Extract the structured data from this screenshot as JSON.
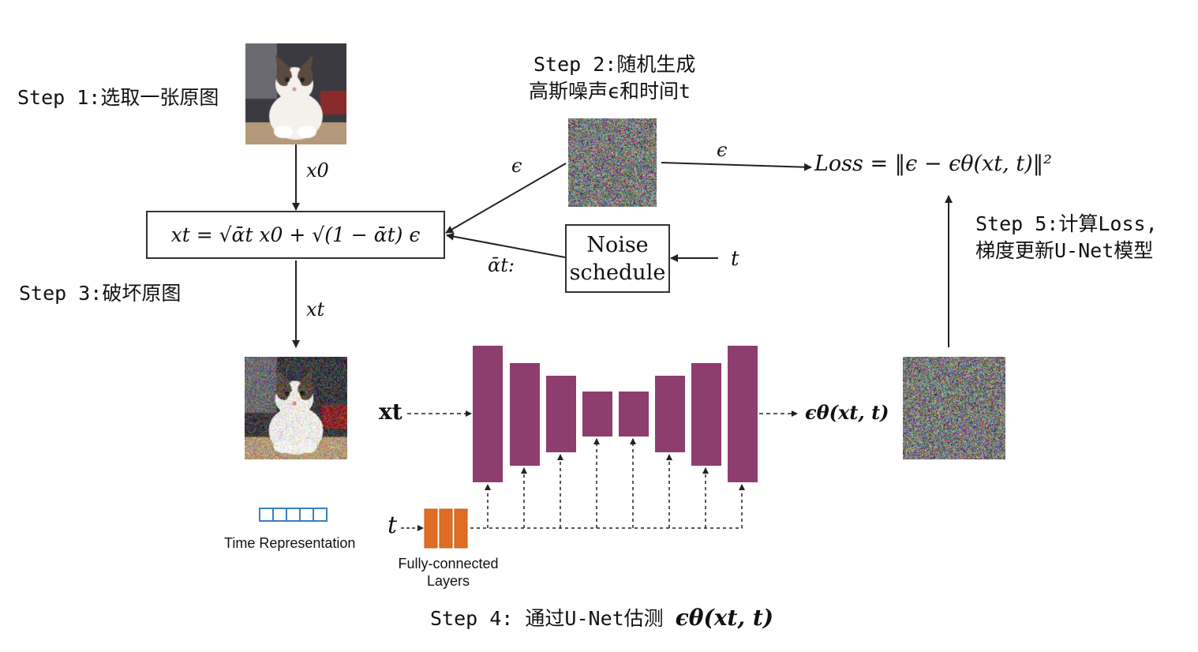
{
  "steps": {
    "step1": "Step 1:选取一张原图",
    "step2_line1": "Step 2:随机生成",
    "step2_line2": "高斯噪声ϵ和时间t",
    "step3": "Step 3:破坏原图",
    "step4_prefix": "Step 4: 通过U-Net估测 ",
    "step4_math": "ϵθ(xt, t)",
    "step5_line1": "Step 5:计算Loss,",
    "step5_line2": "梯度更新U-Net模型"
  },
  "labels": {
    "x0": "x0",
    "xt_arrow": "xt",
    "epsilon_left": "ϵ",
    "epsilon_top": "ϵ",
    "alpha_bar": "ᾱt:",
    "t_input": "t",
    "t_unet": "t",
    "xt_unet": "xt",
    "eps_theta_out": "ϵθ(xt, t)",
    "time_representation": "Time Representation",
    "fc_line1": "Fully-connected",
    "fc_line2": "Layers"
  },
  "formula": {
    "forward": "xt = √ᾱt x0 + √(1 − ᾱt) ϵ",
    "loss": "Loss = ‖ϵ − ϵθ(xt, t)‖²"
  },
  "noise_schedule": {
    "line1": "Noise",
    "line2": "schedule"
  },
  "colors": {
    "unet_block": "#8e3d6f",
    "fc_block": "#e06d25",
    "time_rep": "#3a7fc0",
    "arrow": "#222222"
  },
  "images": {
    "clean_cat": "cat-photo",
    "noisy_cat": "noisy-cat-photo",
    "noise_sample": "gaussian-noise",
    "predicted_noise": "predicted-noise"
  }
}
